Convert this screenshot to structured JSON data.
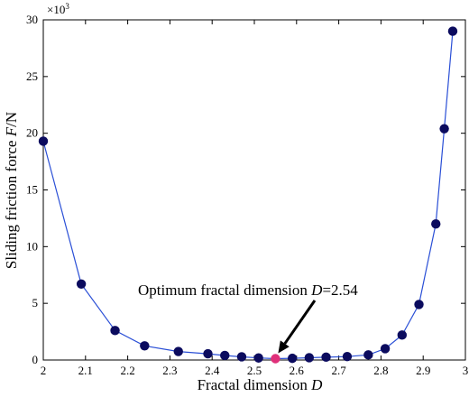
{
  "chart_data": {
    "type": "line",
    "xlabel": "Fractal dimension",
    "xlabel_var": "D",
    "ylabel": "Sliding friction force",
    "ylabel_var": "F",
    "ylabel_unit": "/N",
    "y_multiplier": "×10",
    "y_multiplier_exp": "3",
    "xlim": [
      2,
      3
    ],
    "ylim": [
      0,
      30
    ],
    "xticks": [
      2,
      2.1,
      2.2,
      2.3,
      2.4,
      2.5,
      2.6,
      2.7,
      2.8,
      2.9,
      3
    ],
    "xtick_labels": [
      "2",
      "2.1",
      "2.2",
      "2.3",
      "2.4",
      "2.5",
      "2.6",
      "2.7",
      "2.8",
      "2.9",
      "3"
    ],
    "yticks": [
      0,
      5,
      10,
      15,
      20,
      25,
      30
    ],
    "ytick_labels": [
      "0",
      "5",
      "10",
      "15",
      "20",
      "25",
      "30"
    ],
    "grid": false,
    "series": [
      {
        "x": [
          2.0,
          2.09,
          2.17,
          2.24,
          2.32,
          2.39,
          2.43,
          2.47,
          2.51,
          2.55,
          2.59,
          2.63,
          2.67,
          2.72,
          2.77,
          2.81,
          2.85,
          2.89,
          2.93,
          2.95,
          2.97
        ],
        "y": [
          19.3,
          6.7,
          2.6,
          1.25,
          0.75,
          0.55,
          0.4,
          0.28,
          0.18,
          0.12,
          0.15,
          0.2,
          0.25,
          0.3,
          0.45,
          1.0,
          2.2,
          4.9,
          12.0,
          20.4,
          29.0
        ],
        "color": "#2a4fd6",
        "marker_color": "#0b0b5e"
      }
    ],
    "highlight": {
      "x": 2.55,
      "y": 0.12,
      "color": "#e0307a"
    },
    "annotation": {
      "text": "Optimum fractal dimension ",
      "var": "D",
      "value_text": "=2.54",
      "x": 2.55,
      "y": 0.12
    }
  }
}
